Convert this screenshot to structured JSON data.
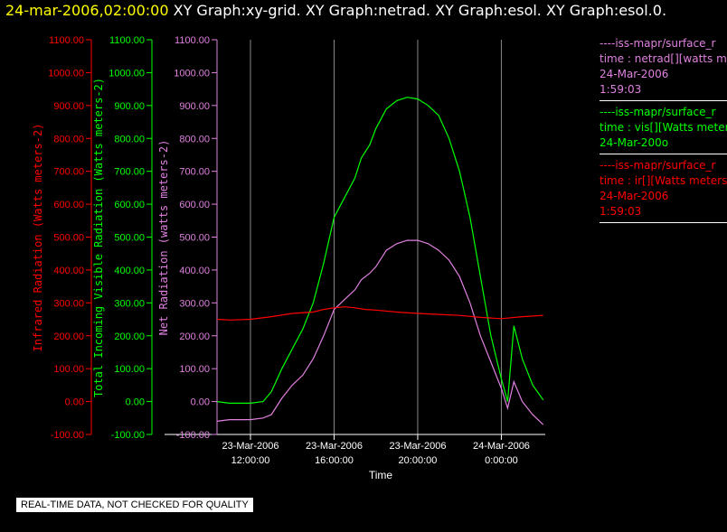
{
  "title": {
    "timestamp": "24-mar-2006,02:00:00",
    "graphs": "XY Graph:xy-grid.  XY Graph:netrad.  XY Graph:esol.  XY Graph:esol.0."
  },
  "legend": [
    {
      "lines": [
        "----iss-mapr/surface_r",
        "time : netrad[][watts m",
        "24-Mar-2006",
        "1:59:03"
      ],
      "color": "#e080e0"
    },
    {
      "lines": [
        "----iss-mapr/surface_r",
        "time : vis[][Watts meter",
        "24-Mar-200o"
      ],
      "color": "#00ff00"
    },
    {
      "lines": [
        "----iss-mapr/surface_r",
        "time : ir[][Watts meters",
        "24-Mar-2006",
        "1:59:03"
      ],
      "color": "#ff0000"
    }
  ],
  "quality_note": "REAL-TIME DATA, NOT CHECKED FOR QUALITY",
  "chart_data": {
    "type": "line",
    "xlabel": "Time",
    "x_ticks": [
      {
        "t": 12,
        "label": [
          "23-Mar-2006",
          "12:00:00"
        ]
      },
      {
        "t": 16,
        "label": [
          "23-Mar-2006",
          "16:00:00"
        ]
      },
      {
        "t": 20,
        "label": [
          "23-Mar-2006",
          "20:00:00"
        ]
      },
      {
        "t": 24,
        "label": [
          "24-Mar-2006",
          "0:00:00"
        ]
      }
    ],
    "xlim": [
      10.4,
      26.1
    ],
    "ylim": [
      -100,
      1100
    ],
    "y_ticks": [
      -100,
      0,
      100,
      200,
      300,
      400,
      500,
      600,
      700,
      800,
      900,
      1000,
      1100
    ],
    "y_tick_labels": [
      "-100.00",
      "0.00",
      "100.00",
      "200.00",
      "300.00",
      "400.00",
      "500.00",
      "600.00",
      "700.00",
      "800.00",
      "900.00",
      "1000.00",
      "1100.00"
    ],
    "axes": [
      {
        "label": "Infrared Radiation (Watts meters-2)",
        "color": "#ff0000"
      },
      {
        "label": "Total Incoming Visible Radiation (Watts meters-2)",
        "color": "#00ff00"
      },
      {
        "label": "Net Radiation (watts meters-2)",
        "color": "#e080e0"
      }
    ],
    "grid_x": true,
    "series": [
      {
        "color": "#00ff00",
        "x": [
          10.4,
          11,
          12,
          12.6,
          13,
          13.5,
          14,
          14.5,
          15,
          15.5,
          16,
          16.5,
          17,
          17.3,
          17.7,
          18,
          18.5,
          19,
          19.5,
          20,
          20.5,
          21,
          21.5,
          22,
          22.5,
          23,
          23.5,
          24,
          24.3,
          24.6,
          25,
          25.5,
          26
        ],
        "y": [
          0,
          -5,
          -5,
          0,
          30,
          100,
          160,
          220,
          300,
          420,
          560,
          620,
          680,
          740,
          780,
          830,
          890,
          915,
          925,
          920,
          900,
          870,
          800,
          700,
          560,
          380,
          200,
          70,
          0,
          230,
          130,
          50,
          5
        ]
      },
      {
        "color": "#e080e0",
        "x": [
          10.4,
          11,
          12,
          12.6,
          13,
          13.5,
          14,
          14.5,
          15,
          15.5,
          16,
          16.5,
          17,
          17.3,
          17.7,
          18,
          18.5,
          19,
          19.5,
          20,
          20.5,
          21,
          21.5,
          22,
          22.5,
          23,
          23.5,
          24,
          24.3,
          24.6,
          25,
          25.5,
          26
        ],
        "y": [
          -60,
          -55,
          -55,
          -50,
          -40,
          10,
          50,
          80,
          130,
          200,
          280,
          310,
          340,
          370,
          390,
          410,
          460,
          480,
          490,
          490,
          480,
          460,
          430,
          380,
          300,
          200,
          120,
          40,
          -20,
          60,
          0,
          -40,
          -70
        ]
      },
      {
        "color": "#ff0000",
        "x": [
          10.4,
          11,
          12,
          13,
          14,
          15,
          15.5,
          16,
          16.5,
          17,
          17.5,
          18,
          19,
          20,
          21,
          22,
          23,
          24,
          25,
          26
        ],
        "y": [
          250,
          248,
          250,
          258,
          268,
          272,
          280,
          285,
          288,
          285,
          280,
          278,
          272,
          268,
          265,
          262,
          256,
          252,
          258,
          262
        ]
      }
    ]
  }
}
